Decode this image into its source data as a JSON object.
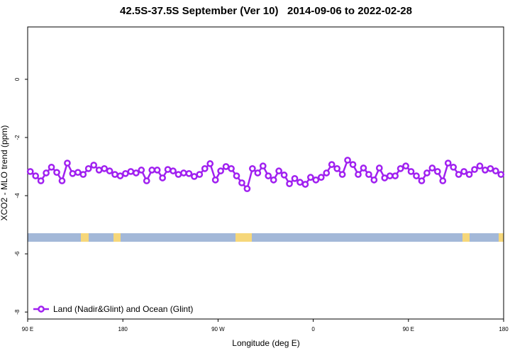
{
  "chart_data": {
    "type": "line",
    "title": "42.5S-37.5S September (Ver 10)   2014-09-06 to 2022-02-28",
    "x_label": "Longitude (deg E)",
    "y_label": "XCO2 - MLO trend (ppm)",
    "xlim": [
      90,
      540
    ],
    "ylim": [
      -8.24,
      1.8
    ],
    "xticks": [
      {
        "value": 90,
        "label": "90 E"
      },
      180,
      {
        "value": 270,
        "label": "90 W"
      },
      {
        "value": 360,
        "label": "0"
      },
      {
        "value": 450,
        "label": "90 E"
      },
      {
        "value": 540,
        "label": "180"
      }
    ],
    "yticks": [
      -8,
      -6,
      -4,
      -2,
      0
    ],
    "legend": "bottom-left",
    "x": [
      92.5,
      97.5,
      102.5,
      107.5,
      112.5,
      117.5,
      122.5,
      127.5,
      132.5,
      137.5,
      142.5,
      147.5,
      152.5,
      157.5,
      162.5,
      167.5,
      172.5,
      177.5,
      182.5,
      187.5,
      192.5,
      197.5,
      202.5,
      207.5,
      212.5,
      217.5,
      222.5,
      227.5,
      232.5,
      237.5,
      242.5,
      247.5,
      252.5,
      257.5,
      262.5,
      267.5,
      272.5,
      277.5,
      282.5,
      287.5,
      292.5,
      297.5,
      302.5,
      307.5,
      312.5,
      317.5,
      322.5,
      327.5,
      332.5,
      337.5,
      342.5,
      347.5,
      352.5,
      357.5,
      362.5,
      367.5,
      372.5,
      377.5,
      382.5,
      387.5,
      392.5,
      397.5,
      402.5,
      407.5,
      412.5,
      417.5,
      422.5,
      427.5,
      432.5,
      437.5,
      442.5,
      447.5,
      452.5,
      457.5,
      462.5,
      467.5,
      472.5,
      477.5,
      482.5,
      487.5,
      492.5,
      497.5,
      502.5,
      507.5,
      512.5,
      517.5,
      522.5,
      527.5,
      532.5,
      537.5
    ],
    "series": [
      {
        "name": "Land (Nadir&Glint) and Ocean (Glint)",
        "color": "#a020f0",
        "values": [
          -3.17,
          -3.32,
          -3.49,
          -3.22,
          -3.02,
          -3.2,
          -3.49,
          -2.88,
          -3.24,
          -3.2,
          -3.27,
          -3.07,
          -2.95,
          -3.12,
          -3.07,
          -3.15,
          -3.27,
          -3.32,
          -3.24,
          -3.17,
          -3.22,
          -3.12,
          -3.49,
          -3.12,
          -3.12,
          -3.39,
          -3.1,
          -3.15,
          -3.27,
          -3.22,
          -3.24,
          -3.34,
          -3.27,
          -3.07,
          -2.9,
          -3.46,
          -3.15,
          -3.0,
          -3.07,
          -3.32,
          -3.56,
          -3.76,
          -3.07,
          -3.22,
          -2.98,
          -3.32,
          -3.46,
          -3.15,
          -3.29,
          -3.59,
          -3.41,
          -3.54,
          -3.61,
          -3.37,
          -3.46,
          -3.37,
          -3.22,
          -2.93,
          -3.07,
          -3.27,
          -2.78,
          -2.93,
          -3.27,
          -3.05,
          -3.27,
          -3.46,
          -3.05,
          -3.39,
          -3.32,
          -3.32,
          -3.07,
          -2.98,
          -3.17,
          -3.32,
          -3.49,
          -3.22,
          -3.05,
          -3.17,
          -3.49,
          -2.88,
          -3.02,
          -3.27,
          -3.17,
          -3.27,
          -3.1,
          -2.98,
          -3.12,
          -3.07,
          -3.15,
          -3.27
        ]
      }
    ]
  }
}
